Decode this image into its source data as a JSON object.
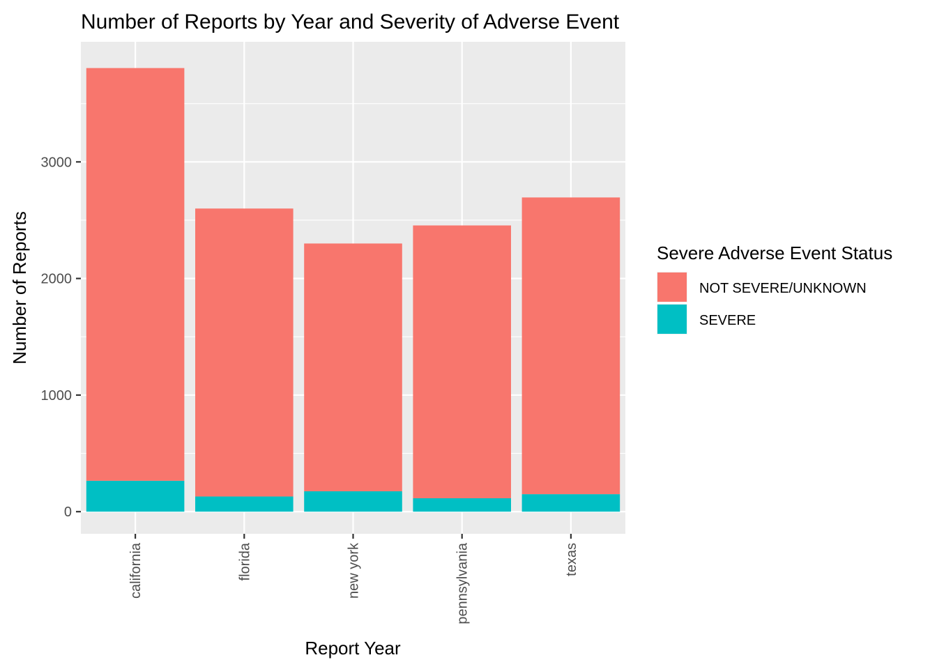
{
  "chart_data": {
    "type": "bar",
    "stacked": true,
    "title": "Number of Reports by Year and Severity of Adverse Event",
    "xlabel": "Report Year",
    "ylabel": "Number of Reports",
    "categories": [
      "california",
      "florida",
      "new york",
      "pennsylvania",
      "texas"
    ],
    "series": [
      {
        "name": "NOT SEVERE/UNKNOWN",
        "color": "#F8766D",
        "values": [
          3540,
          2470,
          2125,
          2340,
          2545
        ]
      },
      {
        "name": "SEVERE",
        "color": "#00BFC4",
        "values": [
          265,
          130,
          175,
          115,
          150
        ]
      }
    ],
    "ylim": [
      -190,
      4030
    ],
    "y_ticks": [
      0,
      1000,
      2000,
      3000
    ],
    "y_tick_labels": [
      "0",
      "1000",
      "2000",
      "3000"
    ],
    "grid": true,
    "panel_background": "#EBEBEB",
    "legend": {
      "title": "Severe Adverse Event Status",
      "position": "right"
    }
  }
}
